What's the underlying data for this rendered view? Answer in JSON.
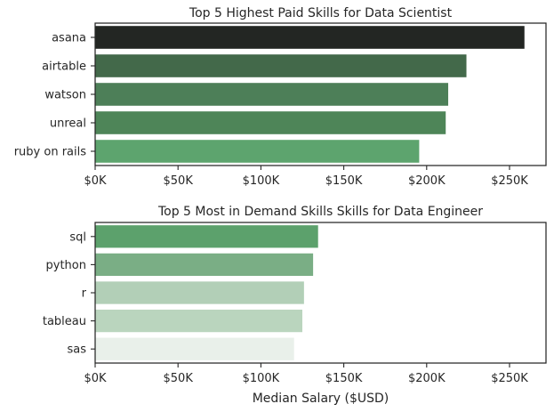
{
  "chart_data": [
    {
      "type": "bar",
      "orientation": "horizontal",
      "title": "Top 5 Highest Paid Skills for Data Scientist",
      "xlabel": "",
      "ylabel": "",
      "categories": [
        "asana",
        "airtable",
        "watson",
        "unreal",
        "ruby on rails"
      ],
      "values": [
        259000,
        224000,
        213000,
        211500,
        195500
      ],
      "colors": [
        "#232623",
        "#43694a",
        "#4d7f58",
        "#4e8558",
        "#5da46e"
      ],
      "xlim": [
        0,
        272000
      ],
      "xticks": [
        "$0K",
        "$50K",
        "$100K",
        "$150K",
        "$200K",
        "$250K"
      ],
      "grid": false
    },
    {
      "type": "bar",
      "orientation": "horizontal",
      "title": "Top 5 Most in Demand Skills Skills for Data Engineer",
      "xlabel": "Median Salary ($USD)",
      "ylabel": "",
      "categories": [
        "sql",
        "python",
        "r",
        "tableau",
        "sas"
      ],
      "values": [
        134500,
        131500,
        126000,
        125000,
        120000
      ],
      "colors": [
        "#5ca16c",
        "#7aae85",
        "#b2cfb7",
        "#bad5be",
        "#e9f0ea"
      ],
      "xlim": [
        0,
        272000
      ],
      "xticks": [
        "$0K",
        "$50K",
        "$100K",
        "$150K",
        "$200K",
        "$250K"
      ],
      "grid": false
    }
  ]
}
